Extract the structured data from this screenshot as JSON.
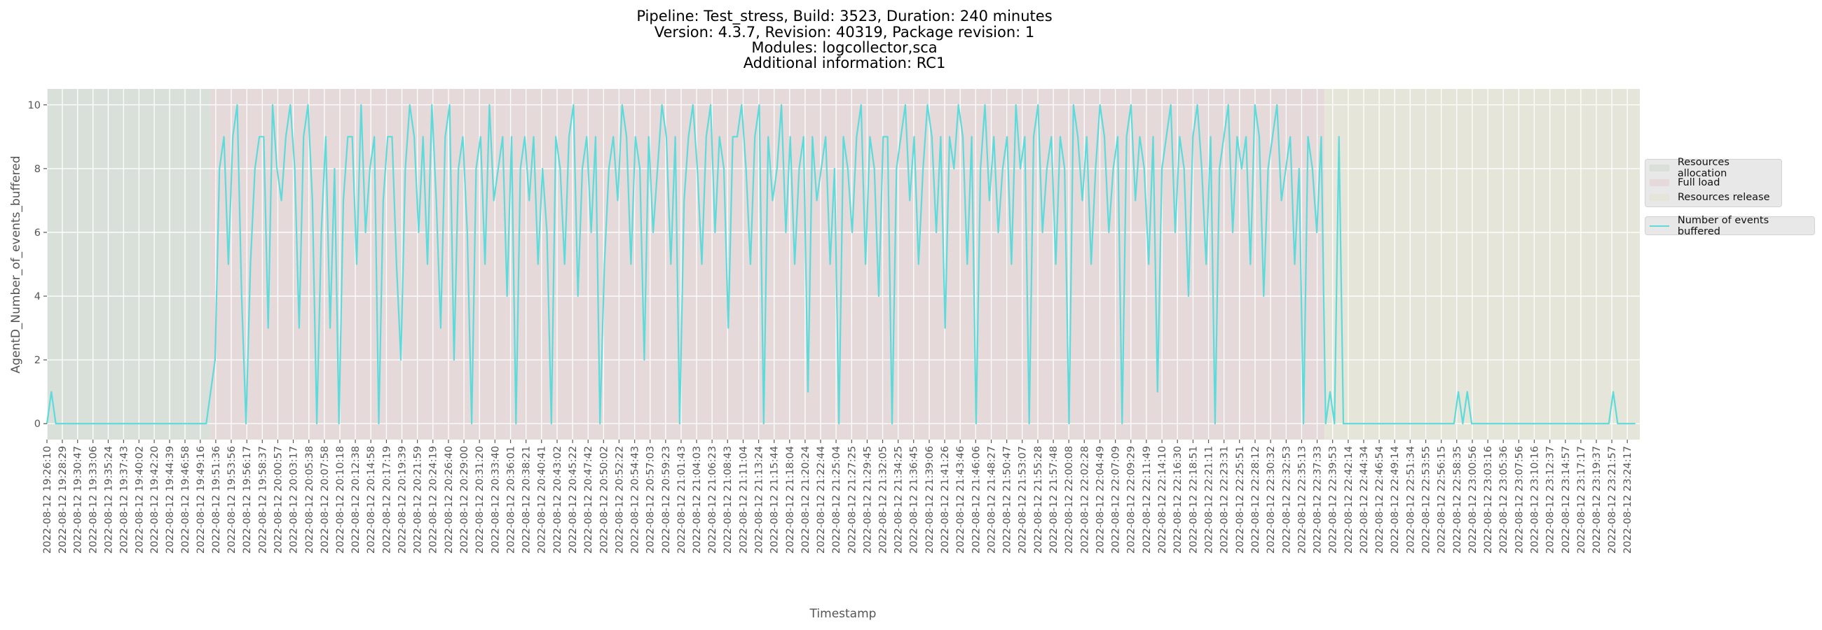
{
  "title_lines": [
    "Pipeline: Test_stress, Build: 3523, Duration: 240 minutes",
    "Version: 4.3.7, Revision: 40319, Package revision: 1",
    "Modules: logcollector,sca",
    "Additional information: RC1"
  ],
  "chart_data": {
    "type": "line",
    "title": "Pipeline: Test_stress, Build: 3523, Duration: 240 minutes / Version: 4.3.7, Revision: 40319, Package revision: 1 / Modules: logcollector,sca / Additional information: RC1",
    "xlabel": "Timestamp",
    "ylabel": "AgentD_Number_of_events_buffered",
    "date": "2022-08-12",
    "xlim": [
      "19:26:10",
      "23:26:10"
    ],
    "ylim": [
      -0.5,
      10.5
    ],
    "yticks": [
      0,
      2,
      4,
      6,
      8,
      10
    ],
    "grid": true,
    "legend_placement": "right-outside",
    "colors": {
      "line": "#5ddbdb",
      "allocation": "#d9e0da",
      "full_load": "#e5d9da",
      "release": "#e5e6d9",
      "grid": "#ffffff"
    },
    "regions": [
      {
        "name": "Resources allocation",
        "start": "19:26:10",
        "end": "19:50:50",
        "color": "#d9e0da"
      },
      {
        "name": "Full load",
        "start": "19:50:50",
        "end": "22:38:40",
        "color": "#e5d9da"
      },
      {
        "name": "Resources release",
        "start": "22:38:40",
        "end": "23:26:10",
        "color": "#e5e6d9"
      }
    ],
    "xtick_labels": [
      "2022-08-12 19:26:10",
      "2022-08-12 19:28:29",
      "2022-08-12 19:30:47",
      "2022-08-12 19:33:06",
      "2022-08-12 19:35:24",
      "2022-08-12 19:37:43",
      "2022-08-12 19:40:02",
      "2022-08-12 19:42:20",
      "2022-08-12 19:44:39",
      "2022-08-12 19:46:58",
      "2022-08-12 19:49:16",
      "2022-08-12 19:51:36",
      "2022-08-12 19:53:56",
      "2022-08-12 19:56:17",
      "2022-08-12 19:58:37",
      "2022-08-12 20:00:57",
      "2022-08-12 20:03:17",
      "2022-08-12 20:05:38",
      "2022-08-12 20:07:58",
      "2022-08-12 20:10:18",
      "2022-08-12 20:12:38",
      "2022-08-12 20:14:58",
      "2022-08-12 20:17:19",
      "2022-08-12 20:19:39",
      "2022-08-12 20:21:59",
      "2022-08-12 20:24:19",
      "2022-08-12 20:26:40",
      "2022-08-12 20:29:00",
      "2022-08-12 20:31:20",
      "2022-08-12 20:33:40",
      "2022-08-12 20:36:01",
      "2022-08-12 20:38:21",
      "2022-08-12 20:40:41",
      "2022-08-12 20:43:02",
      "2022-08-12 20:45:22",
      "2022-08-12 20:47:42",
      "2022-08-12 20:50:02",
      "2022-08-12 20:52:22",
      "2022-08-12 20:54:43",
      "2022-08-12 20:57:03",
      "2022-08-12 20:59:23",
      "2022-08-12 21:01:43",
      "2022-08-12 21:04:03",
      "2022-08-12 21:06:23",
      "2022-08-12 21:08:43",
      "2022-08-12 21:11:04",
      "2022-08-12 21:13:24",
      "2022-08-12 21:15:44",
      "2022-08-12 21:18:04",
      "2022-08-12 21:20:24",
      "2022-08-12 21:22:44",
      "2022-08-12 21:25:04",
      "2022-08-12 21:27:25",
      "2022-08-12 21:29:45",
      "2022-08-12 21:32:05",
      "2022-08-12 21:34:25",
      "2022-08-12 21:36:45",
      "2022-08-12 21:39:06",
      "2022-08-12 21:41:26",
      "2022-08-12 21:43:46",
      "2022-08-12 21:46:06",
      "2022-08-12 21:48:27",
      "2022-08-12 21:50:47",
      "2022-08-12 21:53:07",
      "2022-08-12 21:55:28",
      "2022-08-12 21:57:48",
      "2022-08-12 22:00:08",
      "2022-08-12 22:02:28",
      "2022-08-12 22:04:49",
      "2022-08-12 22:07:09",
      "2022-08-12 22:09:29",
      "2022-08-12 22:11:49",
      "2022-08-12 22:14:10",
      "2022-08-12 22:16:30",
      "2022-08-12 22:18:51",
      "2022-08-12 22:21:11",
      "2022-08-12 22:23:31",
      "2022-08-12 22:25:51",
      "2022-08-12 22:28:12",
      "2022-08-12 22:30:32",
      "2022-08-12 22:32:53",
      "2022-08-12 22:35:13",
      "2022-08-12 22:37:33",
      "2022-08-12 22:39:53",
      "2022-08-12 22:42:14",
      "2022-08-12 22:44:34",
      "2022-08-12 22:46:54",
      "2022-08-12 22:49:14",
      "2022-08-12 22:51:34",
      "2022-08-12 22:53:55",
      "2022-08-12 22:56:15",
      "2022-08-12 22:58:35",
      "2022-08-12 23:00:56",
      "2022-08-12 23:03:16",
      "2022-08-12 23:05:36",
      "2022-08-12 23:07:56",
      "2022-08-12 23:10:16",
      "2022-08-12 23:12:37",
      "2022-08-12 23:14:57",
      "2022-08-12 23:17:17",
      "2022-08-12 23:19:37",
      "2022-08-12 23:21:57",
      "2022-08-12 23:24:17"
    ],
    "legend": {
      "regions": [
        "Resources allocation",
        "Full load",
        "Resources release"
      ],
      "series": [
        "Number of events buffered"
      ]
    },
    "series": [
      {
        "name": "Number of events buffered",
        "x_start": "19:26:10",
        "x_step_seconds": 40,
        "values": [
          0,
          1,
          0,
          0,
          0,
          0,
          0,
          0,
          0,
          0,
          0,
          0,
          0,
          0,
          0,
          0,
          0,
          0,
          0,
          0,
          0,
          0,
          0,
          0,
          0,
          0,
          0,
          0,
          0,
          0,
          0,
          0,
          0,
          0,
          0,
          0,
          0,
          1,
          2,
          8,
          9,
          5,
          9,
          10,
          4,
          0,
          5,
          8,
          9,
          9,
          3,
          10,
          8,
          7,
          9,
          10,
          8,
          3,
          9,
          10,
          7,
          0,
          6,
          9,
          3,
          8,
          0,
          7,
          9,
          9,
          5,
          10,
          6,
          8,
          9,
          0,
          7,
          9,
          9,
          5,
          2,
          8,
          10,
          9,
          6,
          9,
          5,
          10,
          7,
          3,
          9,
          10,
          2,
          8,
          9,
          6,
          0,
          8,
          9,
          5,
          10,
          7,
          8,
          9,
          4,
          9,
          0,
          8,
          9,
          7,
          9,
          5,
          8,
          6,
          0,
          9,
          8,
          5,
          9,
          10,
          4,
          8,
          9,
          6,
          9,
          0,
          5,
          8,
          9,
          7,
          10,
          9,
          5,
          9,
          8,
          2,
          9,
          6,
          8,
          10,
          9,
          5,
          9,
          0,
          7,
          9,
          10,
          8,
          5,
          9,
          10,
          6,
          9,
          8,
          3,
          9,
          9,
          10,
          8,
          5,
          9,
          10,
          0,
          9,
          7,
          8,
          10,
          6,
          9,
          5,
          8,
          9,
          1,
          9,
          7,
          8,
          9,
          5,
          8,
          0,
          9,
          8,
          6,
          9,
          10,
          5,
          9,
          8,
          4,
          9,
          9,
          0,
          8,
          9,
          10,
          7,
          9,
          5,
          8,
          10,
          9,
          6,
          9,
          3,
          9,
          8,
          10,
          9,
          5,
          9,
          0,
          8,
          10,
          7,
          9,
          6,
          8,
          9,
          5,
          10,
          8,
          9,
          0,
          9,
          10,
          6,
          8,
          9,
          5,
          9,
          8,
          0,
          10,
          9,
          7,
          9,
          5,
          8,
          10,
          9,
          6,
          8,
          9,
          0,
          9,
          10,
          7,
          9,
          8,
          5,
          9,
          1,
          8,
          9,
          10,
          6,
          9,
          8,
          4,
          9,
          10,
          8,
          5,
          9,
          0,
          8,
          9,
          10,
          6,
          9,
          8,
          9,
          5,
          10,
          9,
          4,
          8,
          9,
          10,
          7,
          8,
          9,
          5,
          8,
          0,
          9,
          8,
          6,
          9,
          0,
          1,
          0,
          9,
          0,
          0,
          0,
          0,
          0,
          0,
          0,
          0,
          0,
          0,
          0,
          0,
          0,
          0,
          0,
          0,
          0,
          0,
          0,
          0,
          0,
          0,
          0,
          0,
          0,
          0,
          1,
          0,
          1,
          0,
          0,
          0,
          0,
          0,
          0,
          0,
          0,
          0,
          0,
          0,
          0,
          0,
          0,
          0,
          0,
          0,
          0,
          0,
          0,
          0,
          0,
          0,
          0,
          0,
          0,
          0,
          0,
          0,
          0,
          0,
          0,
          1,
          0,
          0,
          0,
          0,
          0
        ]
      }
    ]
  }
}
